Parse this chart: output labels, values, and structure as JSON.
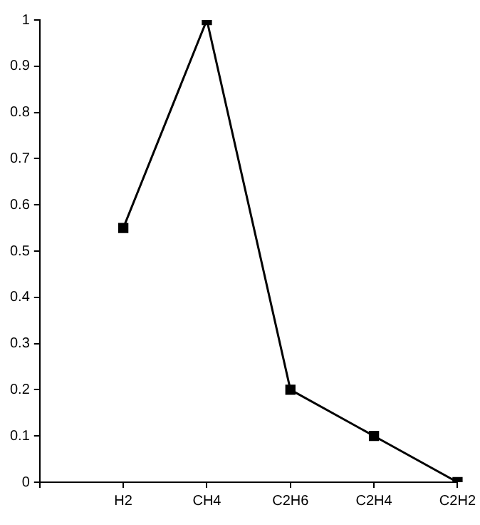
{
  "chart_data": {
    "type": "line",
    "categories": [
      null,
      "H2",
      "CH4",
      "C2H6",
      "C2H4",
      "C2H2"
    ],
    "series": [
      {
        "color": "#000000",
        "values": [
          null,
          0.55,
          1,
          0.2,
          0.1,
          0
        ]
      }
    ],
    "ylim": [
      0,
      1
    ],
    "yticks": [
      0,
      0.1,
      0.2,
      0.3,
      0.4,
      0.5,
      0.6,
      0.7,
      0.8,
      0.9,
      1
    ],
    "grid": false,
    "legend": false,
    "marker": "square",
    "line_style": "solid"
  }
}
